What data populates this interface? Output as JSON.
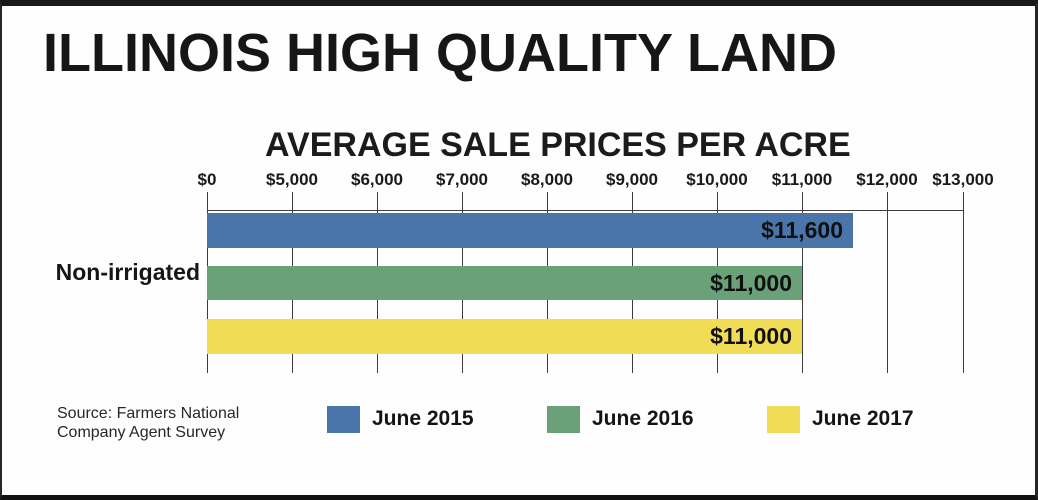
{
  "title": "ILLINOIS HIGH QUALITY LAND",
  "chart_data": {
    "type": "bar",
    "orientation": "horizontal",
    "title": "AVERAGE SALE PRICES PER ACRE",
    "category_label": "Non-irrigated",
    "axis_ticks": [
      "$0",
      "$5,000",
      "$6,000",
      "$7,000",
      "$8,000",
      "$9,000",
      "$10,000",
      "$11,000",
      "$12,000",
      "$13,000"
    ],
    "axis_tick_values": [
      0,
      5000,
      6000,
      7000,
      8000,
      9000,
      10000,
      11000,
      12000,
      13000
    ],
    "axis_scale_note": "non-linear axis: interval $0 to $5,000 drawn same width as each $1,000 interval",
    "grid": "vertical-gridlines-on",
    "series": [
      {
        "name": "June 2015",
        "value": 11600,
        "label": "$11,600",
        "color": "#4a75aa"
      },
      {
        "name": "June 2016",
        "value": 11000,
        "label": "$11,000",
        "color": "#6ba178"
      },
      {
        "name": "June 2017",
        "value": 11000,
        "label": "$11,000",
        "color": "#f1dc55"
      }
    ],
    "legend_position": "bottom"
  },
  "legend": {
    "items": [
      {
        "label": "June 2015",
        "color": "#4a75aa"
      },
      {
        "label": "June 2016",
        "color": "#6ba178"
      },
      {
        "label": "June 2017",
        "color": "#f1dc55"
      }
    ]
  },
  "source": {
    "line1": "Source: Farmers National",
    "line2": "Company Agent Survey"
  }
}
